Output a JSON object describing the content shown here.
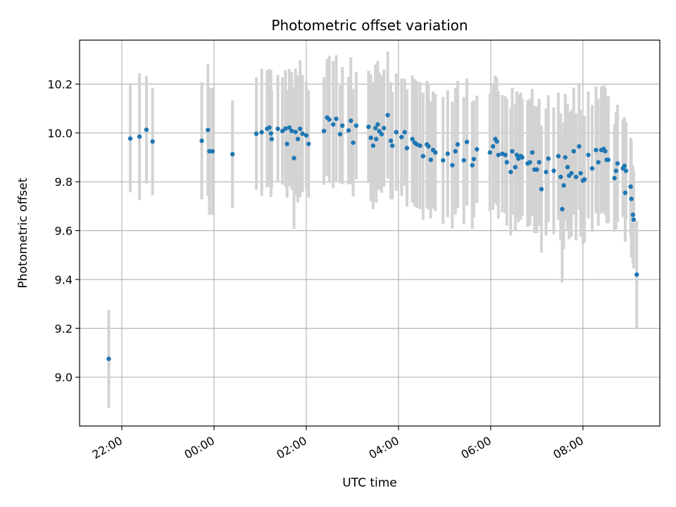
{
  "chart_data": {
    "type": "scatter",
    "title": "Photometric offset variation",
    "xlabel": "UTC time",
    "ylabel": "Photometric offset",
    "grid": true,
    "xlim": [
      "21:05",
      "09:40"
    ],
    "ylim": [
      8.8,
      10.38
    ],
    "x_ticks": [
      "22:00",
      "00:00",
      "02:00",
      "04:00",
      "06:00",
      "08:00"
    ],
    "y_ticks": [
      "9.0",
      "9.2",
      "9.4",
      "9.6",
      "9.8",
      "10.0",
      "10.2"
    ],
    "colors": {
      "points": "#1f77b4",
      "errorbars": "#d3d3d3",
      "grid": "#b0b0b0"
    },
    "series": [
      {
        "points": [
          [
            "21:43",
            9.075,
            0.2
          ],
          [
            "22:11",
            9.977,
            0.22
          ],
          [
            "22:23",
            9.985,
            0.26
          ],
          [
            "22:32",
            10.013,
            0.22
          ],
          [
            "22:40",
            9.965,
            0.22
          ],
          [
            "23:44",
            9.968,
            0.24
          ],
          [
            "23:52",
            10.012,
            0.27
          ],
          [
            "23:54",
            9.925,
            0.26
          ],
          [
            "23:58",
            9.925,
            0.26
          ],
          [
            "00:24",
            9.913,
            0.22
          ],
          [
            "00:55",
            9.997,
            0.23
          ],
          [
            "01:02",
            10.003,
            0.26
          ],
          [
            "01:09",
            10.017,
            0.24
          ],
          [
            "01:12",
            10.022,
            0.24
          ],
          [
            "01:15",
            9.975,
            0.2
          ],
          [
            "01:14",
            9.998,
            0.26
          ],
          [
            "01:23",
            10.017,
            0.22
          ],
          [
            "01:29",
            10.008,
            0.22
          ],
          [
            "01:33",
            10.018,
            0.24
          ],
          [
            "01:35",
            9.955,
            0.22
          ],
          [
            "01:38",
            10.022,
            0.24
          ],
          [
            "01:41",
            10.008,
            0.24
          ],
          [
            "01:44",
            9.897,
            0.29
          ],
          [
            "01:46",
            10.004,
            0.26
          ],
          [
            "01:49",
            9.975,
            0.26
          ],
          [
            "01:52",
            10.017,
            0.28
          ],
          [
            "01:55",
            9.997,
            0.24
          ],
          [
            "02:00",
            9.99,
            0.22
          ],
          [
            "02:03",
            9.955,
            0.22
          ],
          [
            "02:23",
            10.008,
            0.22
          ],
          [
            "02:27",
            10.063,
            0.24
          ],
          [
            "02:30",
            10.055,
            0.26
          ],
          [
            "02:35",
            10.035,
            0.26
          ],
          [
            "02:39",
            10.058,
            0.26
          ],
          [
            "02:44",
            9.995,
            0.2
          ],
          [
            "02:47",
            10.03,
            0.24
          ],
          [
            "02:55",
            10.01,
            0.22
          ],
          [
            "02:58",
            10.05,
            0.26
          ],
          [
            "03:01",
            9.96,
            0.22
          ],
          [
            "03:05",
            10.03,
            0.22
          ],
          [
            "03:21",
            10.025,
            0.23
          ],
          [
            "03:24",
            9.98,
            0.26
          ],
          [
            "03:27",
            9.948,
            0.26
          ],
          [
            "03:30",
            10.02,
            0.26
          ],
          [
            "03:31",
            9.975,
            0.26
          ],
          [
            "03:33",
            10.035,
            0.26
          ],
          [
            "03:35",
            10.007,
            0.24
          ],
          [
            "03:38",
            9.995,
            0.24
          ],
          [
            "03:41",
            10.02,
            0.24
          ],
          [
            "03:46",
            10.073,
            0.26
          ],
          [
            "03:50",
            9.968,
            0.24
          ],
          [
            "03:52",
            9.948,
            0.22
          ],
          [
            "03:57",
            10.003,
            0.24
          ],
          [
            "04:04",
            9.983,
            0.24
          ],
          [
            "04:08",
            10.003,
            0.22
          ],
          [
            "04:11",
            9.938,
            0.24
          ],
          [
            "04:18",
            9.975,
            0.26
          ],
          [
            "04:21",
            9.96,
            0.26
          ],
          [
            "04:24",
            9.953,
            0.26
          ],
          [
            "04:28",
            9.948,
            0.26
          ],
          [
            "04:32",
            9.905,
            0.26
          ],
          [
            "04:37",
            9.953,
            0.26
          ],
          [
            "04:39",
            9.945,
            0.26
          ],
          [
            "04:42",
            9.89,
            0.24
          ],
          [
            "04:45",
            9.93,
            0.24
          ],
          [
            "04:48",
            9.92,
            0.24
          ],
          [
            "04:58",
            9.888,
            0.26
          ],
          [
            "05:04",
            9.915,
            0.26
          ],
          [
            "05:10",
            9.868,
            0.26
          ],
          [
            "05:14",
            9.925,
            0.26
          ],
          [
            "05:17",
            9.953,
            0.26
          ],
          [
            "05:25",
            9.888,
            0.26
          ],
          [
            "05:29",
            9.963,
            0.26
          ],
          [
            "05:36",
            9.868,
            0.26
          ],
          [
            "05:38",
            9.893,
            0.24
          ],
          [
            "05:42",
            9.933,
            0.22
          ],
          [
            "05:59",
            9.92,
            0.24
          ],
          [
            "06:03",
            9.945,
            0.26
          ],
          [
            "06:06",
            9.975,
            0.26
          ],
          [
            "06:08",
            9.965,
            0.26
          ],
          [
            "06:10",
            9.91,
            0.26
          ],
          [
            "06:15",
            9.915,
            0.24
          ],
          [
            "06:19",
            9.91,
            0.24
          ],
          [
            "06:21",
            9.88,
            0.26
          ],
          [
            "06:26",
            9.84,
            0.26
          ],
          [
            "06:28",
            9.925,
            0.26
          ],
          [
            "06:32",
            9.86,
            0.26
          ],
          [
            "06:34",
            9.91,
            0.26
          ],
          [
            "06:36",
            9.895,
            0.26
          ],
          [
            "06:39",
            9.905,
            0.26
          ],
          [
            "06:41",
            9.9,
            0.24
          ],
          [
            "06:48",
            9.875,
            0.26
          ],
          [
            "06:51",
            9.88,
            0.26
          ],
          [
            "06:54",
            9.92,
            0.26
          ],
          [
            "06:57",
            9.85,
            0.26
          ],
          [
            "07:00",
            9.85,
            0.26
          ],
          [
            "07:03",
            9.88,
            0.26
          ],
          [
            "07:06",
            9.77,
            0.26
          ],
          [
            "07:12",
            9.84,
            0.26
          ],
          [
            "07:15",
            9.895,
            0.26
          ],
          [
            "07:22",
            9.845,
            0.26
          ],
          [
            "07:28",
            9.905,
            0.26
          ],
          [
            "07:31",
            9.82,
            0.26
          ],
          [
            "07:33",
            9.688,
            0.3
          ],
          [
            "07:35",
            9.785,
            0.26
          ],
          [
            "07:37",
            9.9,
            0.26
          ],
          [
            "07:40",
            9.86,
            0.26
          ],
          [
            "07:42",
            9.825,
            0.26
          ],
          [
            "07:45",
            9.835,
            0.26
          ],
          [
            "07:48",
            9.925,
            0.26
          ],
          [
            "07:51",
            9.82,
            0.26
          ],
          [
            "07:55",
            9.945,
            0.26
          ],
          [
            "07:57",
            9.835,
            0.26
          ],
          [
            "08:00",
            9.805,
            0.26
          ],
          [
            "08:02",
            9.81,
            0.26
          ],
          [
            "08:07",
            9.91,
            0.26
          ],
          [
            "08:12",
            9.855,
            0.26
          ],
          [
            "08:17",
            9.93,
            0.26
          ],
          [
            "08:20",
            9.88,
            0.26
          ],
          [
            "08:24",
            9.93,
            0.26
          ],
          [
            "08:27",
            9.935,
            0.26
          ],
          [
            "08:29",
            9.925,
            0.26
          ],
          [
            "08:31",
            9.89,
            0.26
          ],
          [
            "08:33",
            9.89,
            0.26
          ],
          [
            "08:41",
            9.815,
            0.22
          ],
          [
            "08:43",
            9.845,
            0.24
          ],
          [
            "08:45",
            9.875,
            0.24
          ],
          [
            "08:52",
            9.855,
            0.2
          ],
          [
            "08:54",
            9.865,
            0.2
          ],
          [
            "08:56",
            9.845,
            0.2
          ],
          [
            "08:55",
            9.755,
            0.2
          ],
          [
            "09:02",
            9.78,
            0.2
          ],
          [
            "09:03",
            9.73,
            0.24
          ],
          [
            "09:05",
            9.665,
            0.2
          ],
          [
            "09:06",
            9.645,
            0.2
          ],
          [
            "09:10",
            9.42,
            0.22
          ]
        ]
      }
    ]
  }
}
